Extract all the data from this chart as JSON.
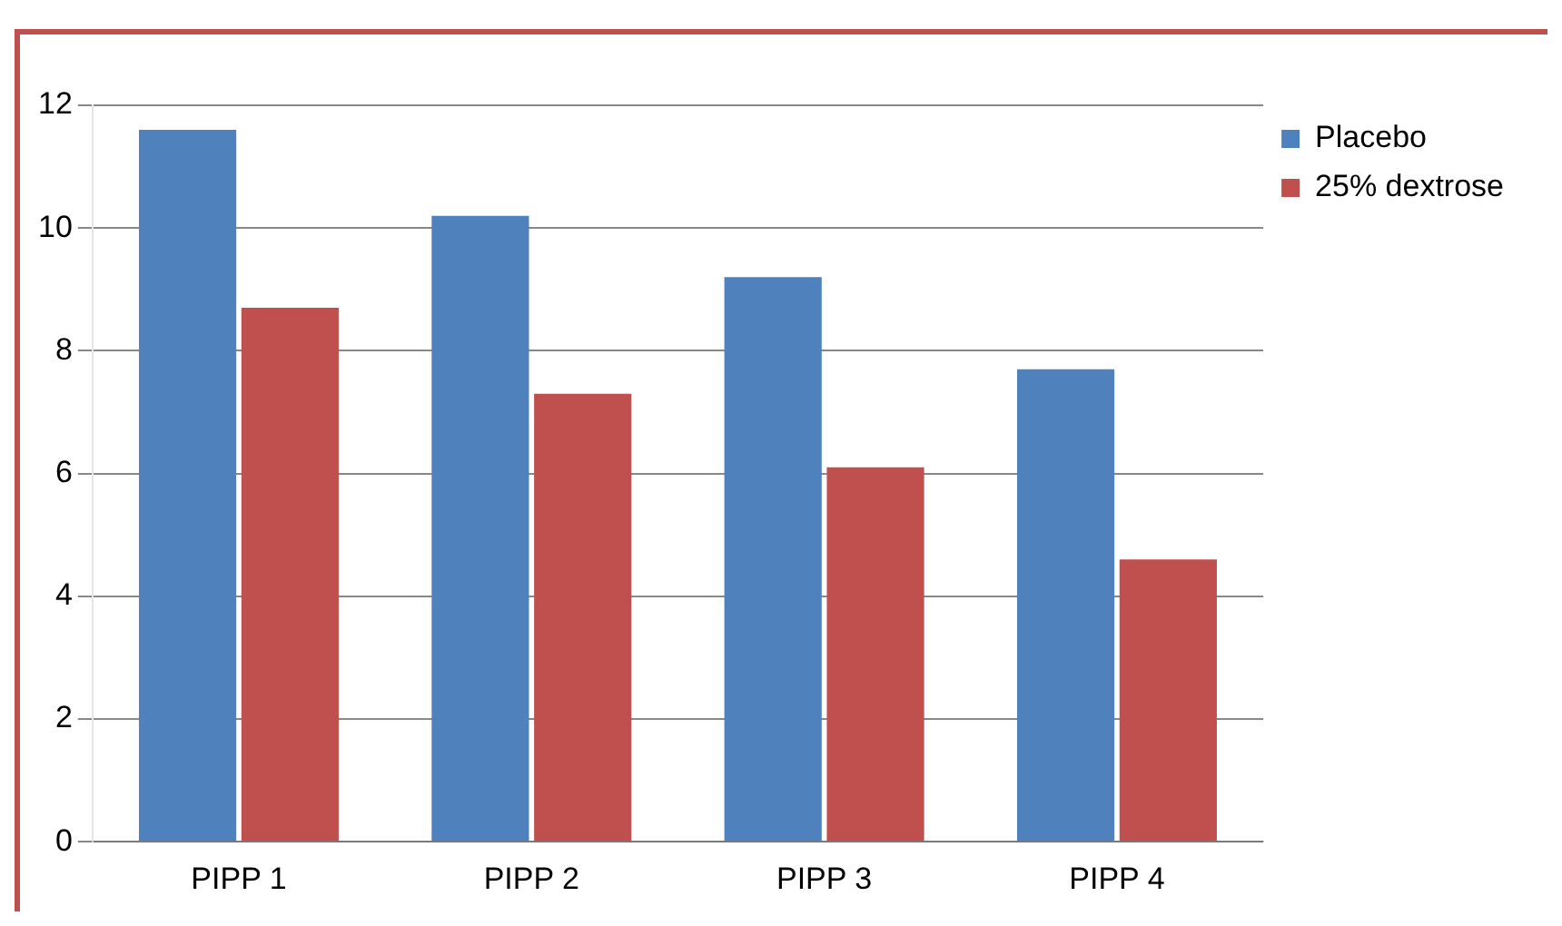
{
  "chart_data": {
    "type": "bar",
    "categories": [
      "PIPP 1",
      "PIPP 2",
      "PIPP 3",
      "PIPP 4"
    ],
    "series": [
      {
        "name": "Placebo",
        "color": "#4f81bd",
        "values": [
          11.6,
          10.2,
          9.2,
          7.7
        ]
      },
      {
        "name": "25% dextrose",
        "color": "#c0504d",
        "values": [
          8.7,
          7.3,
          6.1,
          4.6
        ]
      }
    ],
    "ylim": [
      0,
      12
    ],
    "yticks": [
      0,
      2,
      4,
      6,
      8,
      10,
      12
    ],
    "grid": "y",
    "legend": "top right"
  }
}
